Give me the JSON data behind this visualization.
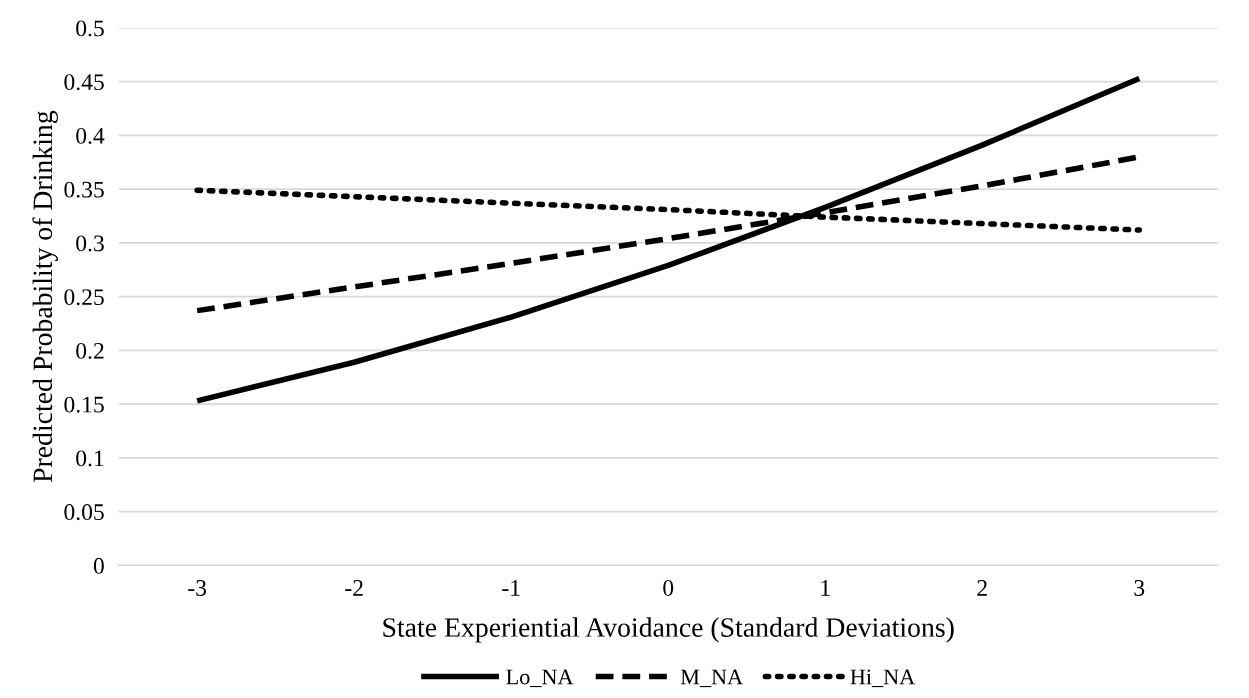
{
  "chart_data": {
    "type": "line",
    "xlabel": "State Experiential Avoidance (Standard Deviations)",
    "ylabel": "Predicted Probability of Drinking",
    "categories": [
      "-3",
      "-2",
      "-1",
      "0",
      "1",
      "2",
      "3"
    ],
    "series": [
      {
        "name": "Lo_NA",
        "color": "#000000",
        "line_style": "solid",
        "values": [
          0.153,
          0.189,
          0.231,
          0.279,
          0.333,
          0.391,
          0.453
        ]
      },
      {
        "name": "M_NA",
        "color": "#000000",
        "line_style": "dashed",
        "values": [
          0.237,
          0.259,
          0.281,
          0.304,
          0.328,
          0.353,
          0.38
        ]
      },
      {
        "name": "Hi_NA",
        "color": "#000000",
        "line_style": "dotted",
        "values": [
          0.349,
          0.343,
          0.337,
          0.331,
          0.324,
          0.318,
          0.312
        ]
      }
    ],
    "ylim": [
      0,
      0.5
    ],
    "yticks": [
      0,
      0.05,
      0.1,
      0.15,
      0.2,
      0.25,
      0.3,
      0.35,
      0.4,
      0.45,
      0.5
    ],
    "grid": "y",
    "legend": "bottom",
    "marker": "none"
  }
}
